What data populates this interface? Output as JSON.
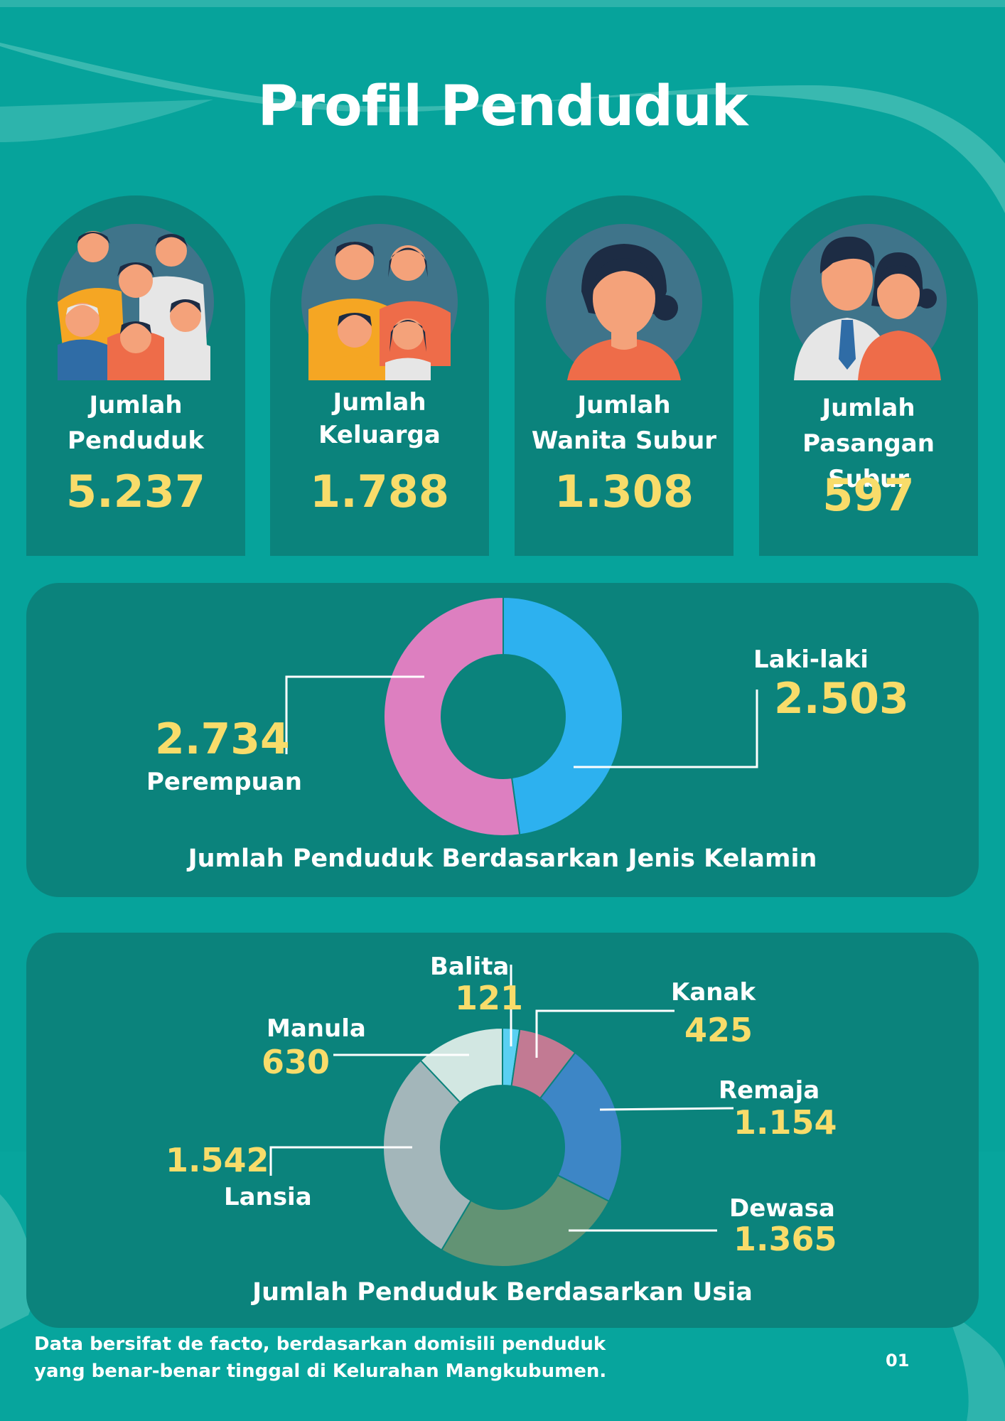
{
  "page": {
    "title": "Profil Penduduk",
    "page_number": "01"
  },
  "stats": [
    {
      "label_line1": "Jumlah",
      "label_line2": "Penduduk",
      "value": "5.237",
      "icon": "population-group-icon"
    },
    {
      "label_line1": "Jumlah",
      "label_line2": "Keluarga",
      "value": "1.788",
      "icon": "family-icon"
    },
    {
      "label_line1": "Jumlah",
      "label_line2": "Wanita Subur",
      "value": "1.308",
      "icon": "woman-icon"
    },
    {
      "label_line1": "Jumlah",
      "label_line2": "Pasangan Subur",
      "value": "597",
      "icon": "couple-icon"
    }
  ],
  "colors": {
    "background": "#06a39b",
    "panel": "#0b837c",
    "value_yellow": "#f8dc6a"
  },
  "chart_data": [
    {
      "type": "pie",
      "donut": true,
      "title": "Jumlah Penduduk Berdasarkan Jenis Kelamin",
      "slices": [
        {
          "label": "Laki-laki",
          "value": 2503,
          "value_text": "2.503",
          "color": "#2db1ef"
        },
        {
          "label": "Perempuan",
          "value": 2734,
          "value_text": "2.734",
          "color": "#dd7fc0"
        }
      ]
    },
    {
      "type": "pie",
      "donut": true,
      "title": "Jumlah Penduduk Berdasarkan Usia",
      "slices": [
        {
          "label": "Balita",
          "value": 121,
          "value_text": "121",
          "color": "#5ad0f2"
        },
        {
          "label": "Kanak",
          "value": 425,
          "value_text": "425",
          "color": "#c27a93"
        },
        {
          "label": "Remaja",
          "value": 1154,
          "value_text": "1.154",
          "color": "#3d86c6"
        },
        {
          "label": "Dewasa",
          "value": 1365,
          "value_text": "1.365",
          "color": "#629374"
        },
        {
          "label": "Lansia",
          "value": 1542,
          "value_text": "1.542",
          "color": "#a3b6ba"
        },
        {
          "label": "Manula",
          "value": 630,
          "value_text": "630",
          "color": "#d2e7e2"
        }
      ]
    }
  ],
  "footnote": {
    "line1": "Data bersifat de facto, berdasarkan domisili penduduk",
    "line2": "yang benar-benar tinggal di Kelurahan Mangkubumen."
  }
}
